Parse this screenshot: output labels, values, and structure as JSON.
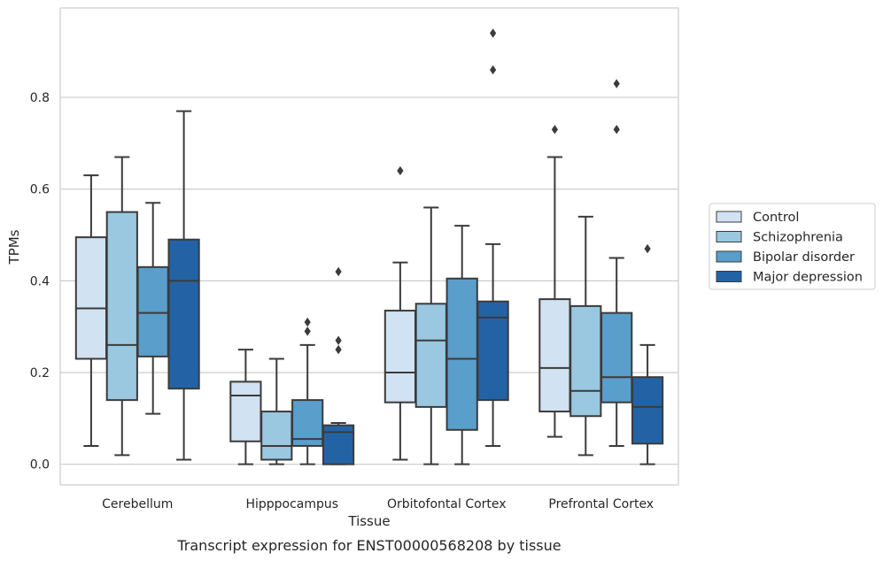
{
  "chart_data": {
    "type": "box",
    "caption": "Transcript expression for ENST00000568208 by tissue",
    "xlabel": "Tissue",
    "ylabel": "TPMs",
    "ylim": [
      -0.045,
      0.995
    ],
    "yticks": [
      0.0,
      0.2,
      0.4,
      0.6,
      0.8
    ],
    "ytick_labels": [
      "0.0",
      "0.2",
      "0.4",
      "0.6",
      "0.8"
    ],
    "grid": "horizontal",
    "legend_position": "right",
    "categories": [
      "Cerebellum",
      "Hipppocampus",
      "Orbitofontal Cortex",
      "Prefrontal Cortex"
    ],
    "series": [
      {
        "name": "Control",
        "color": "#d1e2f2",
        "boxes": [
          {
            "whislo": 0.04,
            "q1": 0.23,
            "med": 0.34,
            "q3": 0.495,
            "whishi": 0.63,
            "fliers": []
          },
          {
            "whislo": 0.0,
            "q1": 0.05,
            "med": 0.15,
            "q3": 0.18,
            "whishi": 0.25,
            "fliers": []
          },
          {
            "whislo": 0.01,
            "q1": 0.135,
            "med": 0.2,
            "q3": 0.335,
            "whishi": 0.44,
            "fliers": [
              0.64
            ]
          },
          {
            "whislo": 0.06,
            "q1": 0.115,
            "med": 0.21,
            "q3": 0.36,
            "whishi": 0.67,
            "fliers": [
              0.73
            ]
          }
        ]
      },
      {
        "name": "Schizophrenia",
        "color": "#9ac8e0",
        "boxes": [
          {
            "whislo": 0.02,
            "q1": 0.14,
            "med": 0.26,
            "q3": 0.55,
            "whishi": 0.67,
            "fliers": []
          },
          {
            "whislo": 0.0,
            "q1": 0.01,
            "med": 0.04,
            "q3": 0.115,
            "whishi": 0.23,
            "fliers": []
          },
          {
            "whislo": 0.0,
            "q1": 0.125,
            "med": 0.27,
            "q3": 0.35,
            "whishi": 0.56,
            "fliers": []
          },
          {
            "whislo": 0.02,
            "q1": 0.105,
            "med": 0.16,
            "q3": 0.345,
            "whishi": 0.54,
            "fliers": []
          }
        ]
      },
      {
        "name": "Bipolar disorder",
        "color": "#5a9ecb",
        "boxes": [
          {
            "whislo": 0.11,
            "q1": 0.235,
            "med": 0.33,
            "q3": 0.43,
            "whishi": 0.57,
            "fliers": []
          },
          {
            "whislo": 0.0,
            "q1": 0.04,
            "med": 0.055,
            "q3": 0.14,
            "whishi": 0.26,
            "fliers": [
              0.29,
              0.31
            ]
          },
          {
            "whislo": 0.0,
            "q1": 0.075,
            "med": 0.23,
            "q3": 0.405,
            "whishi": 0.52,
            "fliers": []
          },
          {
            "whislo": 0.04,
            "q1": 0.135,
            "med": 0.19,
            "q3": 0.33,
            "whishi": 0.45,
            "fliers": [
              0.73,
              0.83
            ]
          }
        ]
      },
      {
        "name": "Major depression",
        "color": "#2363a5",
        "boxes": [
          {
            "whislo": 0.01,
            "q1": 0.165,
            "med": 0.4,
            "q3": 0.49,
            "whishi": 0.77,
            "fliers": []
          },
          {
            "whislo": 0.0,
            "q1": 0.0,
            "med": 0.07,
            "q3": 0.085,
            "whishi": 0.09,
            "fliers": [
              0.25,
              0.27,
              0.42
            ]
          },
          {
            "whislo": 0.04,
            "q1": 0.14,
            "med": 0.32,
            "q3": 0.355,
            "whishi": 0.48,
            "fliers": [
              0.86,
              0.94
            ]
          },
          {
            "whislo": 0.0,
            "q1": 0.045,
            "med": 0.125,
            "q3": 0.19,
            "whishi": 0.26,
            "fliers": [
              0.47
            ]
          }
        ]
      }
    ]
  }
}
